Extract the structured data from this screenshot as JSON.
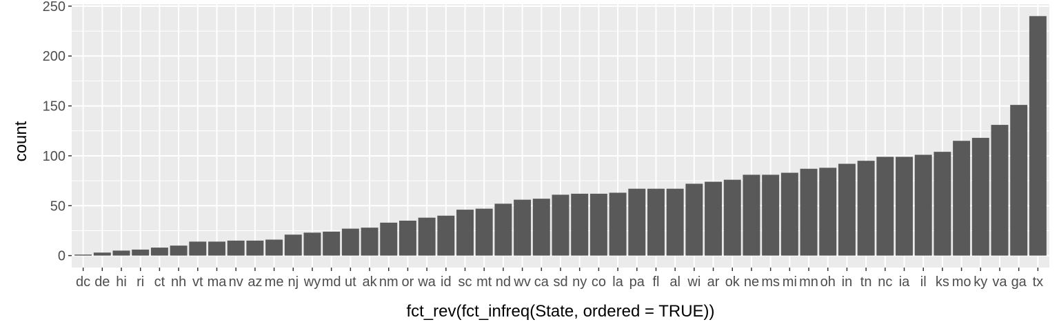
{
  "chart_data": {
    "type": "bar",
    "xlabel": "fct_rev(fct_infreq(State, ordered = TRUE))",
    "ylabel": "count",
    "ylim": [
      -12,
      252
    ],
    "yticks": [
      0,
      50,
      100,
      150,
      200,
      250
    ],
    "grid": true,
    "colors": {
      "bar": "#595959",
      "panel": "#ebebeb",
      "grid": "#ffffff"
    },
    "categories": [
      "dc",
      "de",
      "hi",
      "ri",
      "ct",
      "nh",
      "vt",
      "ma",
      "nv",
      "az",
      "me",
      "nj",
      "wy",
      "md",
      "ut",
      "ak",
      "nm",
      "or",
      "wa",
      "id",
      "sc",
      "mt",
      "nd",
      "wv",
      "ca",
      "sd",
      "ny",
      "co",
      "la",
      "pa",
      "fl",
      "al",
      "wi",
      "ar",
      "ok",
      "ne",
      "ms",
      "mi",
      "mn",
      "oh",
      "in",
      "tn",
      "nc",
      "ia",
      "il",
      "ks",
      "mo",
      "ky",
      "va",
      "ga",
      "tx"
    ],
    "values": [
      1,
      3,
      5,
      6,
      8,
      10,
      14,
      14,
      15,
      15,
      16,
      21,
      23,
      24,
      27,
      28,
      33,
      35,
      38,
      40,
      46,
      47,
      52,
      56,
      57,
      61,
      62,
      62,
      63,
      67,
      67,
      67,
      72,
      74,
      76,
      81,
      81,
      83,
      87,
      88,
      92,
      95,
      99,
      99,
      101,
      104,
      115,
      118,
      131,
      151,
      240
    ]
  }
}
